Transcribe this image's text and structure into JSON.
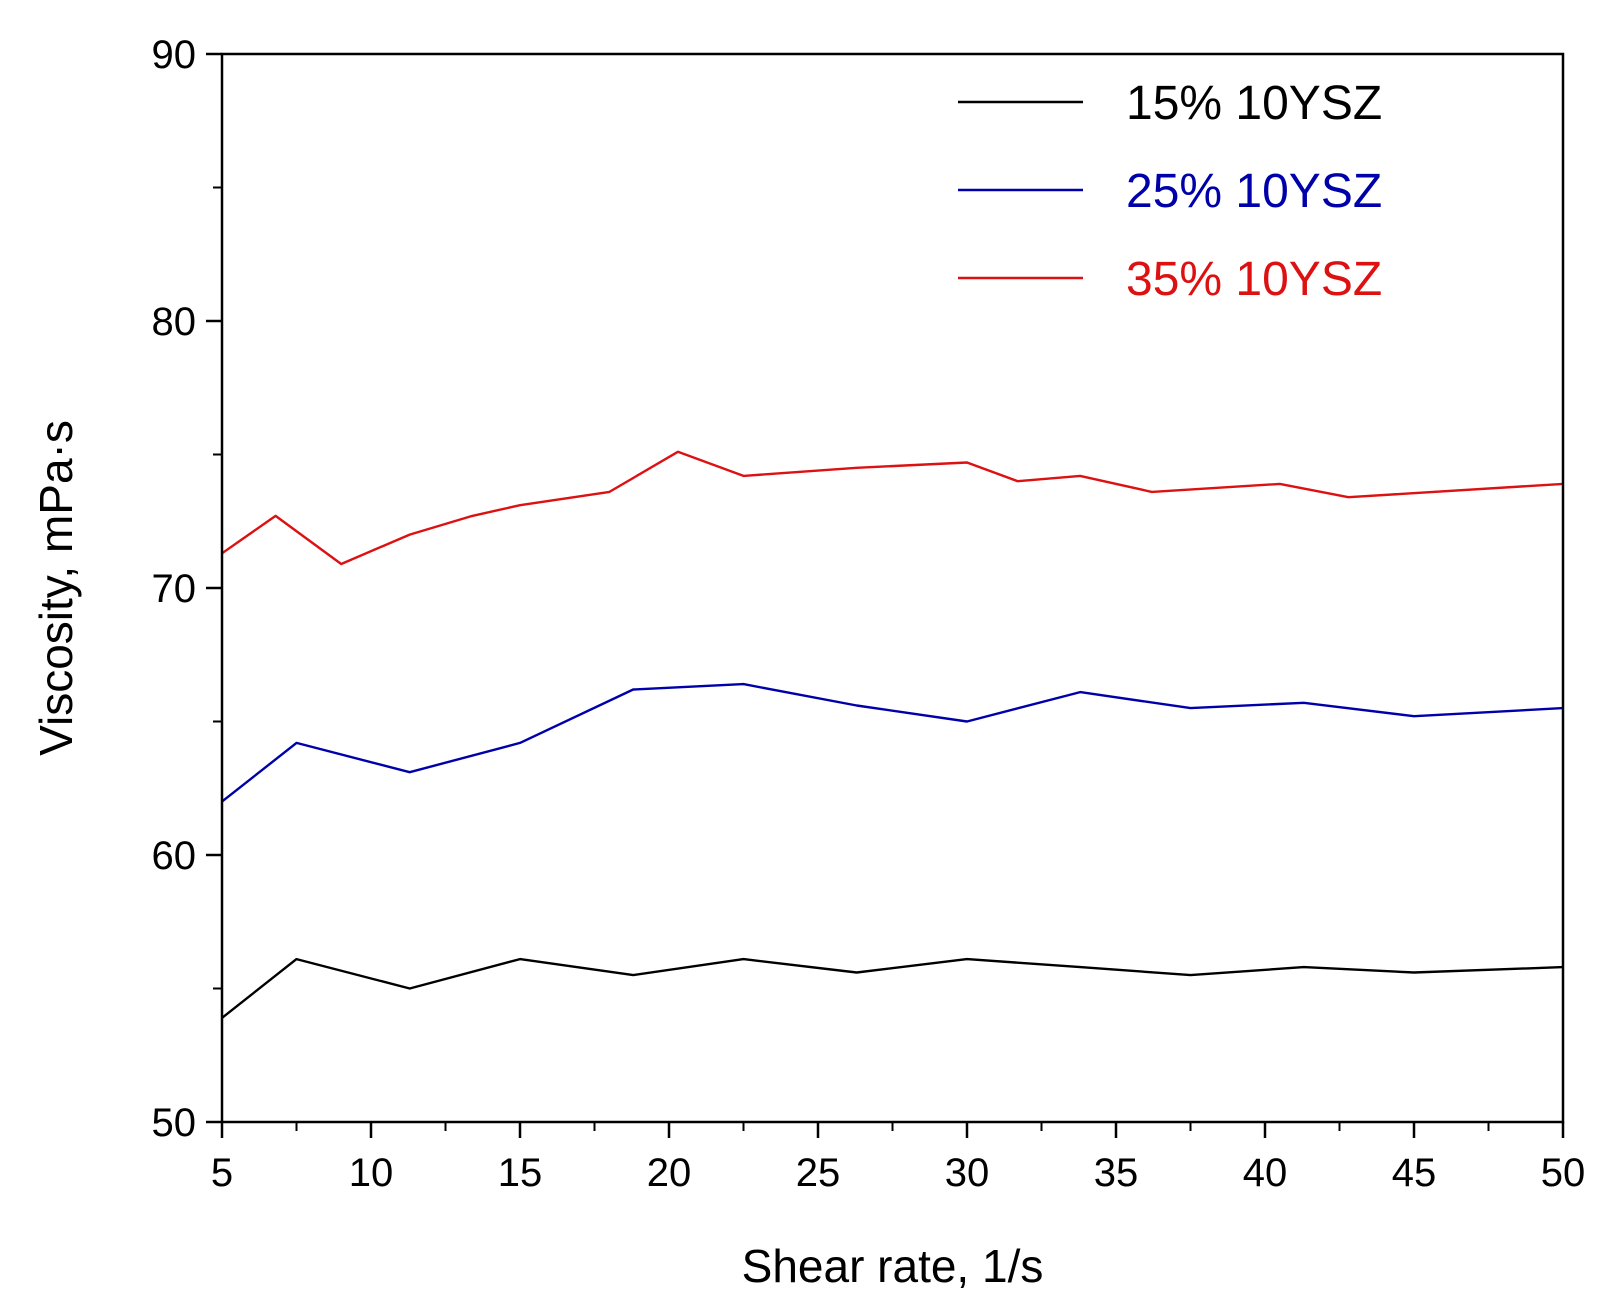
{
  "chart_data": {
    "type": "line",
    "title": "",
    "xlabel": "Shear rate, 1/s",
    "ylabel": "Viscosity, mPa·s",
    "xlim": [
      5,
      50
    ],
    "ylim": [
      50,
      90
    ],
    "x_major_ticks": [
      5,
      10,
      15,
      20,
      25,
      30,
      35,
      40,
      45,
      50
    ],
    "x_tick_labels": [
      "5",
      "10",
      "15",
      "20",
      "25",
      "30",
      "35",
      "40",
      "45",
      "50"
    ],
    "x_minor_ticks": [
      7.5,
      12.5,
      17.5,
      22.5,
      27.5,
      32.5,
      37.5,
      42.5,
      47.5
    ],
    "y_major_ticks": [
      50,
      60,
      70,
      80,
      90
    ],
    "y_tick_labels": [
      "50",
      "60",
      "70",
      "80",
      "90"
    ],
    "y_minor_ticks": [
      55,
      65,
      75,
      85
    ],
    "grid": false,
    "legend_position": "top-right",
    "series": [
      {
        "name": "15% 10YSZ",
        "color": "#000000",
        "x": [
          5,
          7.5,
          11.3,
          15,
          18.8,
          22.5,
          26.3,
          30,
          33.8,
          37.5,
          41.3,
          45,
          50
        ],
        "y": [
          53.9,
          56.1,
          55.0,
          56.1,
          55.5,
          56.1,
          55.6,
          56.1,
          55.8,
          55.5,
          55.8,
          55.6,
          55.8
        ]
      },
      {
        "name": "25% 10YSZ",
        "color": "#0000aa",
        "x": [
          5,
          7.5,
          11.3,
          15,
          18.8,
          22.5,
          26.3,
          30,
          33.8,
          37.5,
          41.3,
          45,
          50
        ],
        "y": [
          62.0,
          64.2,
          63.1,
          64.2,
          66.2,
          66.4,
          65.6,
          65.0,
          66.1,
          65.5,
          65.7,
          65.2,
          65.5
        ]
      },
      {
        "name": "35% 10YSZ",
        "color": "#dd1111",
        "x": [
          5,
          6.8,
          9,
          11.3,
          13.4,
          15,
          18,
          20.3,
          22.5,
          26.3,
          30,
          31.7,
          33.8,
          36.2,
          40.5,
          42.8,
          50
        ],
        "y": [
          71.3,
          72.7,
          70.9,
          72.0,
          72.7,
          73.1,
          73.6,
          75.1,
          74.2,
          74.5,
          74.7,
          74.0,
          74.2,
          73.6,
          73.9,
          73.4,
          73.9
        ]
      }
    ]
  }
}
